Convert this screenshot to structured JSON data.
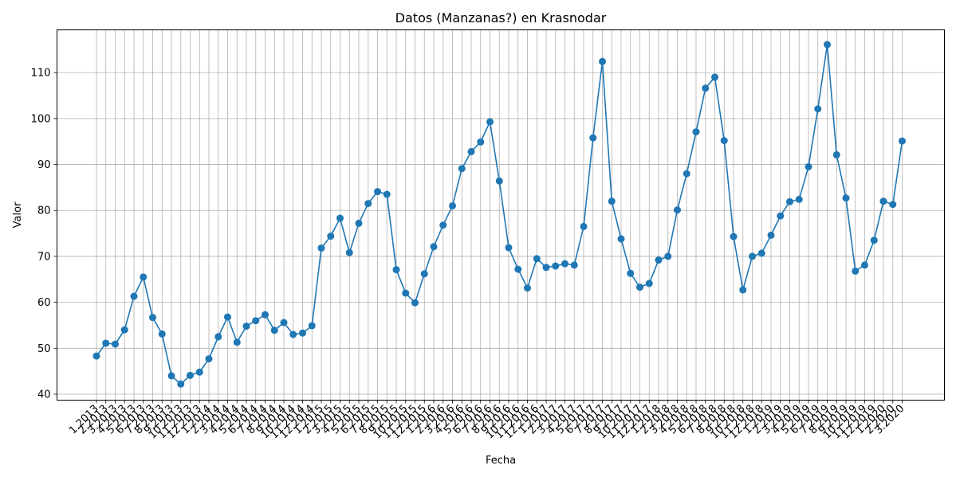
{
  "chart_data": {
    "type": "line",
    "title": "Datos (Manzanas?) en Krasnodar",
    "xlabel": "Fecha",
    "ylabel": "Valor",
    "ylim": [
      38.7,
      119.3
    ],
    "yticks": [
      40,
      50,
      60,
      70,
      80,
      90,
      100,
      110
    ],
    "grid": true,
    "line_color": "#1f77b4",
    "marker": "circle",
    "x": [
      "1.2013",
      "2.2013",
      "3.2013",
      "4.2013",
      "5.2013",
      "6.2013",
      "7.2013",
      "8.2013",
      "9.2013",
      "10.2013",
      "11.2013",
      "12.2013",
      "1.2014",
      "2.2014",
      "3.2014",
      "4.2014",
      "5.2014",
      "6.2014",
      "7.2014",
      "8.2014",
      "9.2014",
      "10.2014",
      "11.2014",
      "12.2014",
      "1.2015",
      "2.2015",
      "3.2015",
      "4.2015",
      "5.2015",
      "6.2015",
      "7.2015",
      "8.2015",
      "9.2015",
      "10.2015",
      "11.2015",
      "12.2015",
      "1.2016",
      "2.2016",
      "3.2016",
      "4.2016",
      "5.2016",
      "6.2016",
      "7.2016",
      "8.2016",
      "9.2016",
      "10.2016",
      "11.2016",
      "12.2016",
      "1.2017",
      "2.2017",
      "3.2017",
      "4.2017",
      "5.2017",
      "6.2017",
      "7.2017",
      "8.2017",
      "9.2017",
      "10.2017",
      "11.2017",
      "12.2017",
      "1.2018",
      "2.2018",
      "3.2018",
      "4.2018",
      "5.2018",
      "6.2018",
      "7.2018",
      "8.2018",
      "9.2018",
      "10.2018",
      "11.2018",
      "12.2018",
      "1.2019",
      "2.2019",
      "3.2019",
      "4.2019",
      "5.2019",
      "6.2019",
      "7.2019",
      "8.2019",
      "9.2019",
      "10.2019",
      "11.2019",
      "12.2019",
      "1.2020",
      "2.2020",
      "3.2020"
    ],
    "values": [
      48.3,
      51.1,
      50.9,
      54.0,
      61.3,
      65.5,
      56.7,
      53.1,
      44.0,
      42.2,
      44.1,
      44.8,
      47.7,
      52.5,
      56.8,
      51.3,
      54.8,
      56.0,
      57.3,
      53.9,
      55.6,
      53.0,
      53.3,
      54.9,
      71.8,
      74.4,
      78.3,
      70.8,
      77.2,
      81.5,
      84.1,
      83.5,
      67.1,
      62.0,
      59.9,
      66.2,
      72.1,
      76.8,
      81.0,
      89.1,
      92.8,
      94.9,
      99.3,
      86.4,
      71.9,
      67.2,
      63.1,
      69.5,
      67.6,
      67.9,
      68.4,
      68.1,
      76.5,
      95.8,
      112.4,
      82.0,
      73.8,
      66.3,
      63.3,
      64.1,
      69.2,
      70.0,
      80.1,
      88.0,
      97.1,
      106.6,
      109.0,
      95.2,
      74.3,
      62.7,
      70.0,
      70.7,
      74.6,
      78.8,
      81.9,
      82.4,
      89.5,
      102.1,
      116.1,
      92.1,
      82.7,
      66.8,
      68.1,
      73.5,
      82.0,
      81.3,
      95.1
    ]
  }
}
